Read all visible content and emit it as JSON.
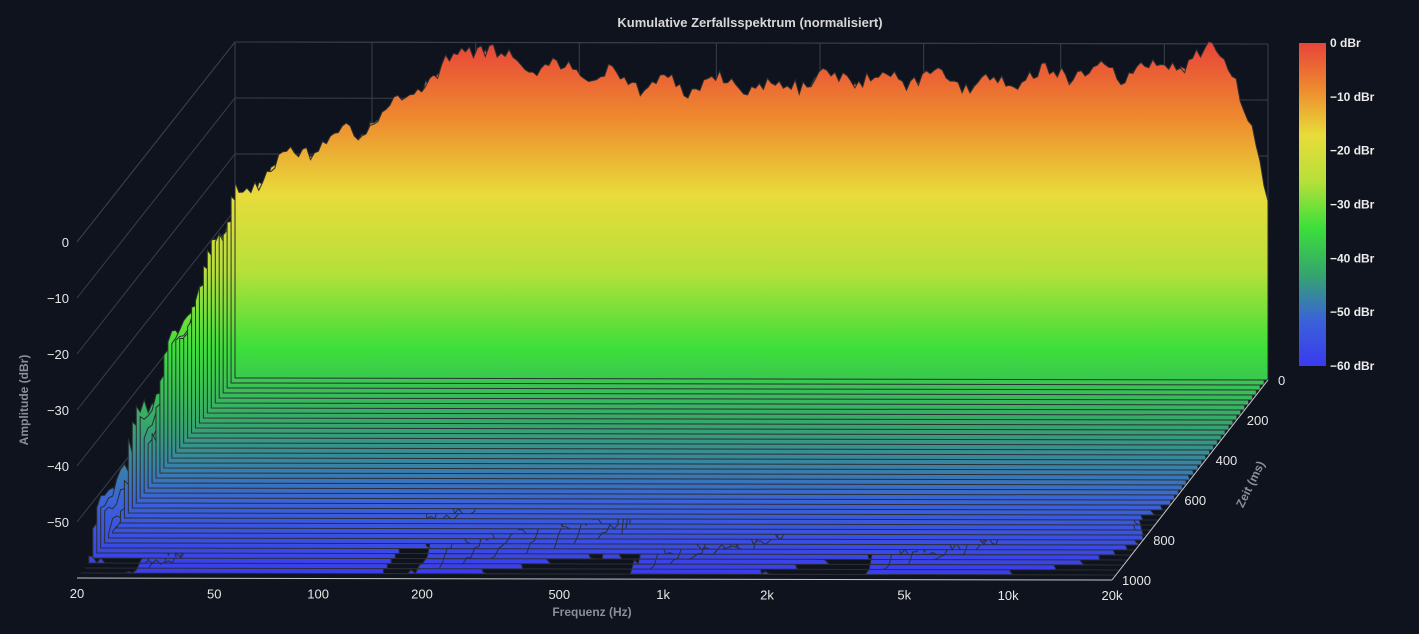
{
  "chart_data": {
    "type": "waterfall-3d",
    "title": "Kumulative Zerfallsspektrum (normalisiert)",
    "xlabel": "Frequenz (Hz)",
    "ylabel": "Amplitude (dBr)",
    "zlabel": "Zeit (ms)",
    "x_scale": "log",
    "xlim": [
      20,
      20000
    ],
    "ylim": [
      -60,
      0
    ],
    "zlim": [
      0,
      1000
    ],
    "x_ticks": [
      {
        "value": 20,
        "label": "20"
      },
      {
        "value": 50,
        "label": "50"
      },
      {
        "value": 100,
        "label": "100"
      },
      {
        "value": 200,
        "label": "200"
      },
      {
        "value": 500,
        "label": "500"
      },
      {
        "value": 1000,
        "label": "1k"
      },
      {
        "value": 2000,
        "label": "2k"
      },
      {
        "value": 5000,
        "label": "5k"
      },
      {
        "value": 10000,
        "label": "10k"
      },
      {
        "value": 20000,
        "label": "20k"
      }
    ],
    "y_ticks": [
      {
        "value": 0,
        "label": "0"
      },
      {
        "value": -10,
        "label": "−10"
      },
      {
        "value": -20,
        "label": "−20"
      },
      {
        "value": -30,
        "label": "−30"
      },
      {
        "value": -40,
        "label": "−40"
      },
      {
        "value": -50,
        "label": "−50"
      }
    ],
    "z_ticks": [
      {
        "value": 0,
        "label": "0"
      },
      {
        "value": 200,
        "label": "200"
      },
      {
        "value": 400,
        "label": "400"
      },
      {
        "value": 600,
        "label": "600"
      },
      {
        "value": 800,
        "label": "800"
      },
      {
        "value": 1000,
        "label": "1000"
      }
    ],
    "colorbar": {
      "range": [
        -60,
        0
      ],
      "colors": [
        "#3a3aee",
        "#3a63d8",
        "#35a66c",
        "#3ddf3a",
        "#b6e03a",
        "#e8dc3a",
        "#ee8a2e",
        "#e8443a"
      ],
      "ticks": [
        {
          "value": 0,
          "label": "0 dBr"
        },
        {
          "value": -10,
          "label": "−10 dBr"
        },
        {
          "value": -20,
          "label": "−20 dBr"
        },
        {
          "value": -30,
          "label": "−30 dBr"
        },
        {
          "value": -40,
          "label": "−40 dBr"
        },
        {
          "value": -50,
          "label": "−50 dBr"
        },
        {
          "value": -60,
          "label": "−60 dBr"
        }
      ]
    },
    "slices": {
      "count": 40,
      "time_step_ms": 25,
      "front_response_dBr": [
        {
          "f": 20,
          "a": -27
        },
        {
          "f": 30,
          "a": -20
        },
        {
          "f": 45,
          "a": -16
        },
        {
          "f": 60,
          "a": -11
        },
        {
          "f": 80,
          "a": -5
        },
        {
          "f": 100,
          "a": 0
        },
        {
          "f": 120,
          "a": -3
        },
        {
          "f": 150,
          "a": -4
        },
        {
          "f": 200,
          "a": -5
        },
        {
          "f": 300,
          "a": -7
        },
        {
          "f": 400,
          "a": -8
        },
        {
          "f": 500,
          "a": -7
        },
        {
          "f": 700,
          "a": -8
        },
        {
          "f": 1000,
          "a": -6
        },
        {
          "f": 1500,
          "a": -6
        },
        {
          "f": 2000,
          "a": -6
        },
        {
          "f": 3000,
          "a": -7
        },
        {
          "f": 5000,
          "a": -5
        },
        {
          "f": 8000,
          "a": -5
        },
        {
          "f": 12000,
          "a": -3
        },
        {
          "f": 14000,
          "a": -1
        },
        {
          "f": 16000,
          "a": -5
        },
        {
          "f": 18000,
          "a": -16
        },
        {
          "f": 20000,
          "a": -30
        }
      ]
    }
  }
}
